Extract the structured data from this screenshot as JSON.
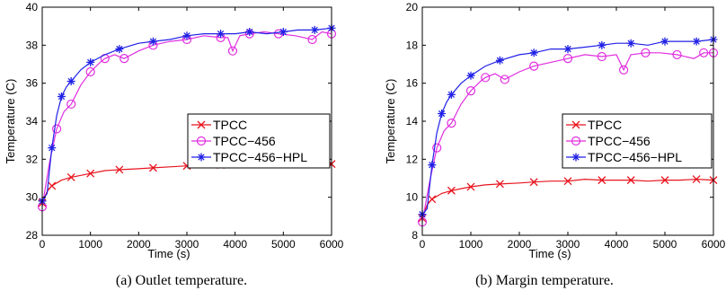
{
  "chart_data": [
    {
      "type": "line",
      "xlabel": "Time (s)",
      "ylabel": "Temperature (C)",
      "xlim": [
        0,
        6000
      ],
      "ylim": [
        28,
        40
      ],
      "xticks": [
        0,
        1000,
        2000,
        3000,
        4000,
        5000,
        6000
      ],
      "yticks": [
        28,
        30,
        32,
        34,
        36,
        38,
        40
      ],
      "grid": false,
      "legend_position": "center-right",
      "series": [
        {
          "name": "TPCC",
          "color": "#e8141e",
          "marker": "x",
          "x": [
            0,
            100,
            200,
            400,
            600,
            800,
            1000,
            1300,
            1600,
            2000,
            2300,
            2650,
            3000,
            3350,
            3700,
            4000,
            4300,
            4650,
            5000,
            5300,
            5650,
            6000
          ],
          "y": [
            29.7,
            30.3,
            30.6,
            30.9,
            31.05,
            31.15,
            31.25,
            31.4,
            31.45,
            31.5,
            31.55,
            31.6,
            31.65,
            31.75,
            31.7,
            31.7,
            31.75,
            31.7,
            31.75,
            31.7,
            31.75,
            31.75
          ]
        },
        {
          "name": "TPCC−456",
          "color": "#e02ee0",
          "marker": "o",
          "x": [
            0,
            150,
            300,
            450,
            600,
            800,
            1000,
            1200,
            1300,
            1500,
            1700,
            2000,
            2300,
            2650,
            3000,
            3350,
            3700,
            3850,
            3950,
            4100,
            4300,
            4600,
            4900,
            5250,
            5600,
            5800,
            6000
          ],
          "y": [
            29.5,
            31.8,
            33.6,
            34.5,
            34.9,
            35.9,
            36.6,
            37.1,
            37.3,
            37.5,
            37.3,
            37.7,
            38.0,
            38.2,
            38.3,
            38.5,
            38.4,
            38.4,
            37.7,
            38.5,
            38.6,
            38.7,
            38.6,
            38.5,
            38.3,
            38.7,
            38.6
          ]
        },
        {
          "name": "TPCC−456−HPL",
          "color": "#2020e6",
          "marker": "*",
          "x": [
            0,
            100,
            200,
            300,
            400,
            500,
            600,
            800,
            1000,
            1300,
            1600,
            2000,
            2300,
            2650,
            3000,
            3350,
            3700,
            4000,
            4300,
            4650,
            5000,
            5300,
            5650,
            6000
          ],
          "y": [
            29.8,
            30.2,
            32.6,
            34.3,
            35.3,
            35.8,
            36.1,
            36.7,
            37.1,
            37.5,
            37.8,
            38.1,
            38.2,
            38.3,
            38.5,
            38.6,
            38.6,
            38.6,
            38.7,
            38.6,
            38.7,
            38.8,
            38.8,
            38.9
          ]
        }
      ]
    },
    {
      "type": "line",
      "xlabel": "Time (s)",
      "ylabel": "Temperature (C)",
      "xlim": [
        0,
        6000
      ],
      "ylim": [
        8,
        20
      ],
      "xticks": [
        0,
        1000,
        2000,
        3000,
        4000,
        5000,
        6000
      ],
      "yticks": [
        8,
        10,
        12,
        14,
        16,
        18,
        20
      ],
      "grid": false,
      "legend_position": "center-right",
      "series": [
        {
          "name": "TPCC",
          "color": "#e8141e",
          "marker": "x",
          "x": [
            0,
            100,
            200,
            400,
            600,
            800,
            1000,
            1300,
            1600,
            2000,
            2300,
            2650,
            3000,
            3350,
            3700,
            4000,
            4300,
            4650,
            5000,
            5300,
            5650,
            6000
          ],
          "y": [
            8.9,
            9.6,
            9.9,
            10.2,
            10.35,
            10.45,
            10.55,
            10.65,
            10.7,
            10.75,
            10.8,
            10.85,
            10.85,
            10.95,
            10.9,
            10.9,
            10.9,
            10.85,
            10.9,
            10.9,
            10.95,
            10.9
          ]
        },
        {
          "name": "TPCC−456",
          "color": "#e02ee0",
          "marker": "o",
          "x": [
            0,
            150,
            300,
            450,
            600,
            800,
            1000,
            1200,
            1300,
            1500,
            1700,
            2000,
            2300,
            2650,
            3000,
            3350,
            3700,
            4000,
            4150,
            4300,
            4600,
            4900,
            5250,
            5600,
            5800,
            6000
          ],
          "y": [
            8.7,
            10.8,
            12.6,
            13.5,
            13.9,
            14.9,
            15.6,
            16.1,
            16.3,
            16.5,
            16.2,
            16.6,
            16.9,
            17.1,
            17.3,
            17.5,
            17.4,
            17.5,
            16.7,
            17.5,
            17.6,
            17.6,
            17.5,
            17.3,
            17.6,
            17.6
          ]
        },
        {
          "name": "TPCC−456−HPL",
          "color": "#2020e6",
          "marker": "*",
          "x": [
            0,
            100,
            200,
            300,
            400,
            500,
            600,
            800,
            1000,
            1300,
            1600,
            2000,
            2300,
            2650,
            3000,
            3350,
            3700,
            4000,
            4300,
            4650,
            5000,
            5300,
            5650,
            6000
          ],
          "y": [
            9.1,
            9.4,
            11.7,
            13.4,
            14.4,
            15.0,
            15.4,
            16.0,
            16.4,
            16.9,
            17.2,
            17.5,
            17.6,
            17.8,
            17.8,
            17.9,
            18.0,
            18.1,
            18.1,
            18.0,
            18.2,
            18.2,
            18.2,
            18.3
          ]
        }
      ]
    }
  ],
  "captions": [
    "(a) Outlet temperature.",
    "(b) Margin temperature."
  ]
}
